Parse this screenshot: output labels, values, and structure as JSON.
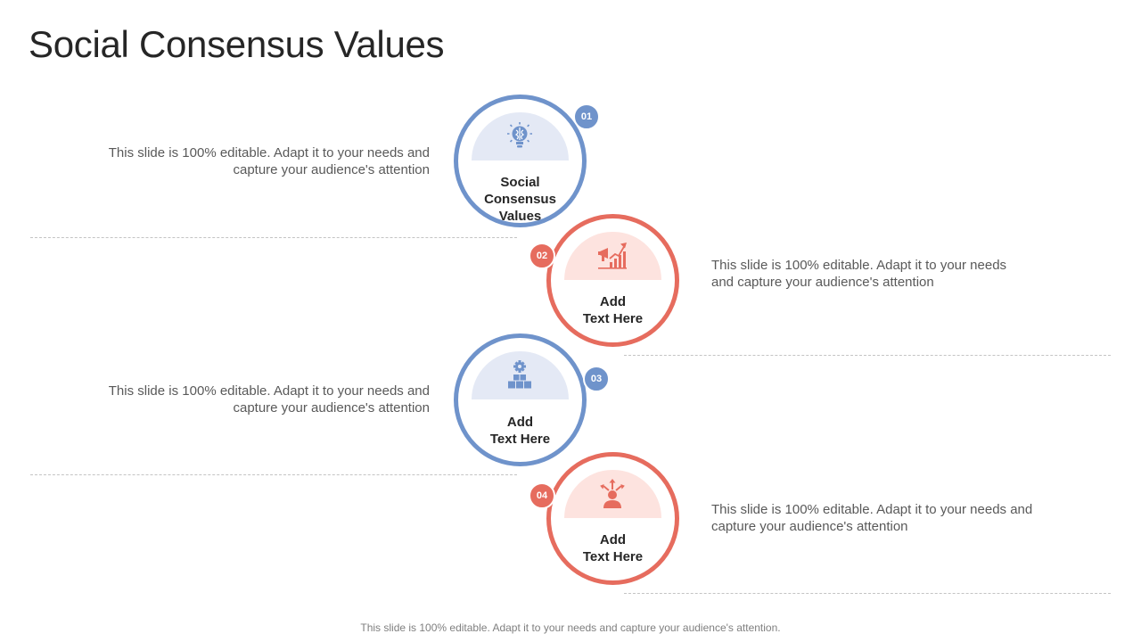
{
  "title": "Social Consensus Values",
  "colors": {
    "blue": "#6f93cb",
    "red": "#e66c5e",
    "blue_tint": "#e4e9f5",
    "red_tint": "#fde3df"
  },
  "steps": [
    {
      "number": "01",
      "label": "Social\nConsensus\nValues",
      "icon": "brain-lightbulb-icon",
      "color": "blue",
      "description": "This slide is 100% editable. Adapt it to your needs and\ncapture your audience's attention"
    },
    {
      "number": "02",
      "label": "Add\nText Here",
      "icon": "megaphone-growth-chart-icon",
      "color": "red",
      "description": "This slide is 100% editable. Adapt it to your needs\nand capture your audience's attention"
    },
    {
      "number": "03",
      "label": "Add\nText Here",
      "icon": "gear-boxes-icon",
      "color": "blue",
      "description": "This slide is 100% editable. Adapt it to your needs and\ncapture your audience's attention"
    },
    {
      "number": "04",
      "label": "Add\nText Here",
      "icon": "person-arrows-icon",
      "color": "red",
      "description": "This slide is 100% editable. Adapt it to your needs and\ncapture your audience's attention"
    }
  ],
  "footer": "This slide is 100% editable. Adapt it to your needs and capture your audience's attention."
}
